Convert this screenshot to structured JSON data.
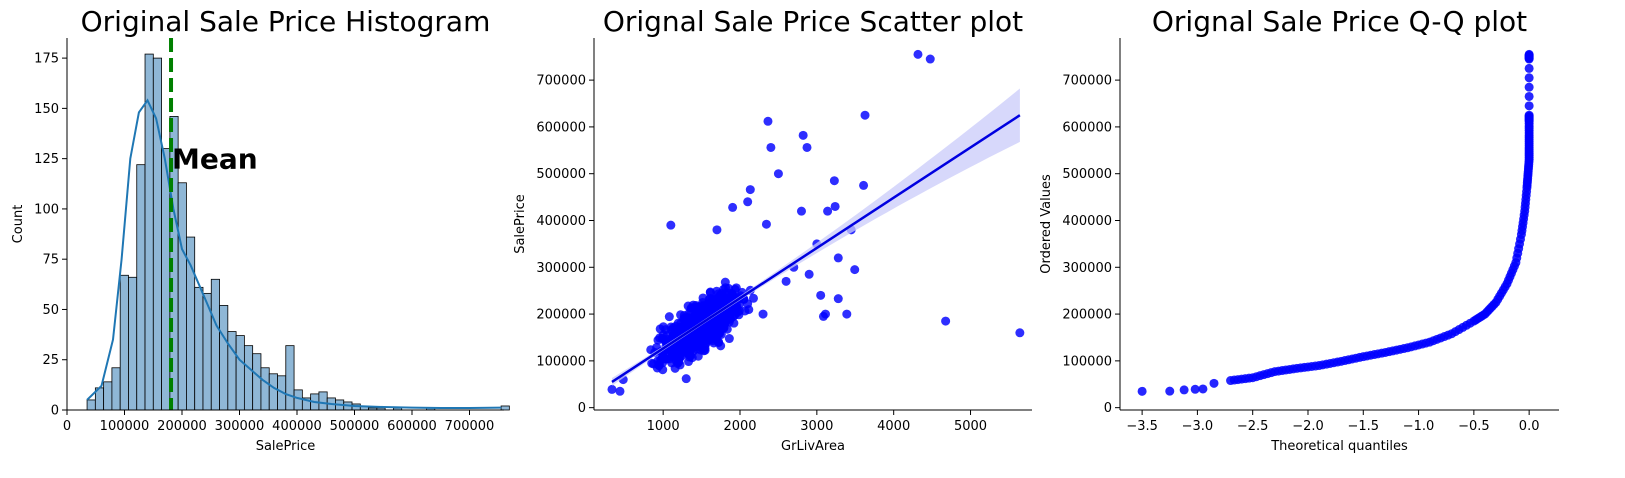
{
  "colors": {
    "hist_fill": "#8FB7D6",
    "hist_kde": "#1F77B4",
    "mean_line": "#008000",
    "scatter": "#0000FF",
    "regression_band": "#C9CBFA",
    "regression_line": "#0000E0",
    "qq_points": "#0000FF"
  },
  "chart_data": [
    {
      "type": "bar",
      "subtype": "histogram-with-kde",
      "title": "Original Sale Price Histogram",
      "xlabel": "SalePrice",
      "ylabel": "Count",
      "xlim": [
        0,
        760000
      ],
      "ylim": [
        0,
        185
      ],
      "xticks": [
        0,
        100000,
        200000,
        300000,
        400000,
        500000,
        600000,
        700000
      ],
      "yticks": [
        0,
        25,
        50,
        75,
        100,
        125,
        150,
        175
      ],
      "bin_start": 34900,
      "bin_width": 14400,
      "counts": [
        5,
        11,
        14,
        21,
        67,
        66,
        122,
        177,
        175,
        130,
        146,
        113,
        86,
        61,
        58,
        65,
        52,
        39,
        37,
        32,
        28,
        21,
        18,
        17,
        32,
        10,
        6,
        8,
        9,
        6,
        5,
        4,
        3,
        2,
        1,
        1,
        0,
        1,
        0,
        0,
        0,
        1,
        0,
        0,
        0,
        0,
        0,
        0,
        0,
        0,
        2
      ],
      "kde": [
        [
          34900,
          5
        ],
        [
          60000,
          12
        ],
        [
          80000,
          35
        ],
        [
          95000,
          75
        ],
        [
          110000,
          125
        ],
        [
          125000,
          148
        ],
        [
          140000,
          154
        ],
        [
          155000,
          145
        ],
        [
          170000,
          125
        ],
        [
          185000,
          100
        ],
        [
          200000,
          80
        ],
        [
          215000,
          72
        ],
        [
          230000,
          62
        ],
        [
          245000,
          52
        ],
        [
          260000,
          42
        ],
        [
          280000,
          33
        ],
        [
          300000,
          25
        ],
        [
          320000,
          20
        ],
        [
          340000,
          15
        ],
        [
          360000,
          11
        ],
        [
          380000,
          8
        ],
        [
          400000,
          6
        ],
        [
          430000,
          4
        ],
        [
          460000,
          3
        ],
        [
          500000,
          2
        ],
        [
          550000,
          1.5
        ],
        [
          600000,
          1.2
        ],
        [
          650000,
          1
        ],
        [
          700000,
          1
        ],
        [
          755000,
          1.2
        ]
      ],
      "mean": 180921,
      "annotation": "Mean"
    },
    {
      "type": "scatter",
      "subtype": "regression-plot",
      "title": "Orignal Sale Price Scatter plot",
      "xlabel": "GrLivArea",
      "ylabel": "SalePrice",
      "xlim": [
        100,
        5800
      ],
      "ylim": [
        -5000,
        790000
      ],
      "xticks": [
        1000,
        2000,
        3000,
        4000,
        5000
      ],
      "yticks": [
        0,
        100000,
        200000,
        300000,
        400000,
        500000,
        600000,
        700000
      ],
      "regression": {
        "x": [
          334,
          5642
        ],
        "y": [
          55000,
          625000
        ]
      },
      "band_at_max_x": [
        565000,
        680000
      ],
      "outliers": [
        [
          4316,
          755000
        ],
        [
          4476,
          745000
        ],
        [
          4676,
          185000
        ],
        [
          5642,
          160000
        ],
        [
          3627,
          625000
        ],
        [
          2364,
          612000
        ],
        [
          2822,
          582000
        ],
        [
          2402,
          556000
        ],
        [
          2872,
          556000
        ],
        [
          3228,
          485000
        ],
        [
          3608,
          475000
        ],
        [
          2134,
          466000
        ],
        [
          1904,
          428000
        ],
        [
          2344,
          392000
        ],
        [
          3238,
          430000
        ],
        [
          3493,
          295000
        ],
        [
          3279,
          233000
        ],
        [
          3112,
          200000
        ],
        [
          3390,
          200000
        ],
        [
          3086,
          195000
        ],
        [
          3447,
          380000
        ],
        [
          3279,
          320000
        ],
        [
          334,
          39000
        ],
        [
          438,
          35000
        ],
        [
          480,
          60000
        ],
        [
          1300,
          62000
        ],
        [
          2300,
          200000
        ],
        [
          2600,
          270000
        ],
        [
          2900,
          285000
        ],
        [
          3000,
          350000
        ],
        [
          1700,
          380000
        ],
        [
          1100,
          390000
        ],
        [
          2100,
          440000
        ],
        [
          2500,
          500000
        ],
        [
          2800,
          420000
        ],
        [
          3140,
          420000
        ],
        [
          3050,
          240000
        ],
        [
          2700,
          300000
        ]
      ]
    },
    {
      "type": "scatter",
      "subtype": "qq-plot",
      "title": "Orignal Sale Price Q-Q plot",
      "xlabel": "Theoretical quantiles",
      "ylabel": "Ordered Values",
      "xlim": [
        -3.7,
        0.27
      ],
      "ylim": [
        -5000,
        790000
      ],
      "xticks": [
        -3.5,
        -3.0,
        -2.5,
        -2.0,
        -1.5,
        -1.0,
        -0.5,
        0.0
      ],
      "xtick_labels": [
        "−3.5",
        "−3.0",
        "−2.5",
        "−2.0",
        "−1.5",
        "−1.0",
        "−0.5",
        "0.0"
      ],
      "yticks": [
        0,
        100000,
        200000,
        300000,
        400000,
        500000,
        600000,
        700000
      ],
      "curve": [
        [
          -3.5,
          34900
        ],
        [
          -3.25,
          35311
        ],
        [
          -3.12,
          37900
        ],
        [
          -3.02,
          39300
        ],
        [
          -2.95,
          40000
        ],
        [
          -2.85,
          52000
        ],
        [
          -2.7,
          58000
        ],
        [
          -2.5,
          64000
        ],
        [
          -2.3,
          77000
        ],
        [
          -2.1,
          84000
        ],
        [
          -1.9,
          90000
        ],
        [
          -1.7,
          99000
        ],
        [
          -1.5,
          109000
        ],
        [
          -1.3,
          118000
        ],
        [
          -1.1,
          128000
        ],
        [
          -0.9,
          140000
        ],
        [
          -0.7,
          158000
        ],
        [
          -0.5,
          185000
        ],
        [
          -0.4,
          200000
        ],
        [
          -0.3,
          225000
        ],
        [
          -0.2,
          265000
        ],
        [
          -0.12,
          310000
        ],
        [
          -0.07,
          370000
        ],
        [
          -0.04,
          420000
        ],
        [
          -0.02,
          470000
        ],
        [
          -0.01,
          500000
        ],
        [
          0.0,
          530000
        ],
        [
          0.0,
          556000
        ],
        [
          0.0,
          582000
        ],
        [
          0.0,
          612000
        ],
        [
          0.0,
          625000
        ],
        [
          0.0,
          745000
        ],
        [
          0.0,
          755000
        ]
      ]
    }
  ]
}
